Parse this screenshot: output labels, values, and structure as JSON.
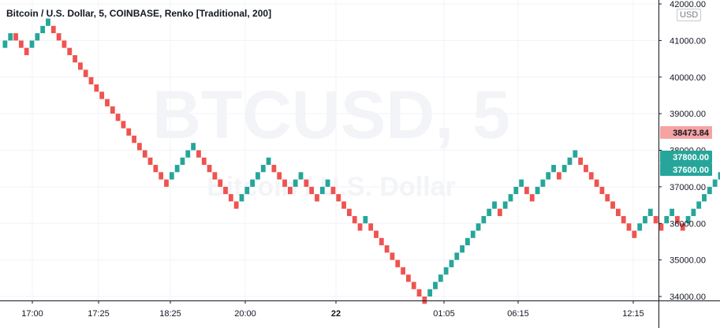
{
  "chart_data": {
    "type": "renko",
    "title": "Bitcoin / U.S. Dollar, 5, COINBASE, Renko [Traditional, 200]",
    "watermark_symbol": "BTCUSD, 5",
    "watermark_name": "Bitcoin / U.S. Dollar",
    "currency": "USD",
    "box_size": 200,
    "ylim": [
      33800,
      42200
    ],
    "y_ticks": [
      "34000.00",
      "35000.00",
      "36000.00",
      "37000.00",
      "38000.00",
      "39000.00",
      "40000.00",
      "41000.00",
      "42000.00"
    ],
    "x_ticks": [
      {
        "label": "17:00",
        "bold": false
      },
      {
        "label": "17:25",
        "bold": false
      },
      {
        "label": "18:25",
        "bold": false
      },
      {
        "label": "20:00",
        "bold": false
      },
      {
        "label": "22",
        "bold": true
      },
      {
        "label": "01:05",
        "bold": false
      },
      {
        "label": "06:15",
        "bold": false
      },
      {
        "label": "12:15",
        "bold": false
      }
    ],
    "price_labels": [
      {
        "value": "38473.84",
        "color": "#f5a3a3",
        "text_color": "#131722"
      },
      {
        "value": "37800.00",
        "color": "#26a69a",
        "text_color": "#ffffff"
      },
      {
        "value": "37600.00",
        "color": "#26a69a",
        "text_color": "#ffffff"
      }
    ],
    "colors": {
      "up": "#26a69a",
      "down": "#ef5350",
      "grid": "#f0f3fa",
      "axis_text": "#131722"
    },
    "bricks": [
      [
        40800,
        41000,
        "up"
      ],
      [
        41000,
        41200,
        "up"
      ],
      [
        41000,
        41200,
        "down"
      ],
      [
        40800,
        41000,
        "down"
      ],
      [
        40600,
        40800,
        "down"
      ],
      [
        40800,
        41000,
        "up"
      ],
      [
        41000,
        41200,
        "up"
      ],
      [
        41200,
        41400,
        "up"
      ],
      [
        41400,
        41600,
        "up"
      ],
      [
        41200,
        41400,
        "down"
      ],
      [
        41000,
        41200,
        "down"
      ],
      [
        40800,
        41000,
        "down"
      ],
      [
        40600,
        40800,
        "down"
      ],
      [
        40400,
        40600,
        "down"
      ],
      [
        40200,
        40400,
        "down"
      ],
      [
        40000,
        40200,
        "down"
      ],
      [
        39800,
        40000,
        "down"
      ],
      [
        39600,
        39800,
        "down"
      ],
      [
        39400,
        39600,
        "down"
      ],
      [
        39200,
        39400,
        "down"
      ],
      [
        39000,
        39200,
        "down"
      ],
      [
        38800,
        39000,
        "down"
      ],
      [
        38600,
        38800,
        "down"
      ],
      [
        38400,
        38600,
        "down"
      ],
      [
        38200,
        38400,
        "down"
      ],
      [
        38000,
        38200,
        "down"
      ],
      [
        37800,
        38000,
        "down"
      ],
      [
        37600,
        37800,
        "down"
      ],
      [
        37400,
        37600,
        "down"
      ],
      [
        37200,
        37400,
        "down"
      ],
      [
        37000,
        37200,
        "down"
      ],
      [
        37200,
        37400,
        "up"
      ],
      [
        37400,
        37600,
        "up"
      ],
      [
        37600,
        37800,
        "up"
      ],
      [
        37800,
        38000,
        "up"
      ],
      [
        38000,
        38200,
        "up"
      ],
      [
        37800,
        38000,
        "down"
      ],
      [
        37600,
        37800,
        "down"
      ],
      [
        37400,
        37600,
        "down"
      ],
      [
        37200,
        37400,
        "down"
      ],
      [
        37000,
        37200,
        "down"
      ],
      [
        36800,
        37000,
        "down"
      ],
      [
        36600,
        36800,
        "down"
      ],
      [
        36400,
        36600,
        "down"
      ],
      [
        36600,
        36800,
        "up"
      ],
      [
        36800,
        37000,
        "up"
      ],
      [
        37000,
        37200,
        "up"
      ],
      [
        37200,
        37400,
        "up"
      ],
      [
        37400,
        37600,
        "up"
      ],
      [
        37600,
        37800,
        "up"
      ],
      [
        37400,
        37600,
        "down"
      ],
      [
        37200,
        37400,
        "down"
      ],
      [
        37000,
        37200,
        "down"
      ],
      [
        36800,
        37000,
        "down"
      ],
      [
        37000,
        37200,
        "up"
      ],
      [
        37200,
        37400,
        "up"
      ],
      [
        37000,
        37200,
        "down"
      ],
      [
        36800,
        37000,
        "down"
      ],
      [
        36600,
        36800,
        "down"
      ],
      [
        36800,
        37000,
        "up"
      ],
      [
        37000,
        37200,
        "up"
      ],
      [
        36800,
        37000,
        "down"
      ],
      [
        36600,
        36800,
        "down"
      ],
      [
        36400,
        36600,
        "down"
      ],
      [
        36200,
        36400,
        "down"
      ],
      [
        36000,
        36200,
        "down"
      ],
      [
        35800,
        36000,
        "down"
      ],
      [
        36000,
        36200,
        "up"
      ],
      [
        35800,
        36000,
        "down"
      ],
      [
        35600,
        35800,
        "down"
      ],
      [
        35400,
        35600,
        "down"
      ],
      [
        35200,
        35400,
        "down"
      ],
      [
        35000,
        35200,
        "down"
      ],
      [
        34800,
        35000,
        "down"
      ],
      [
        34600,
        34800,
        "down"
      ],
      [
        34400,
        34600,
        "down"
      ],
      [
        34200,
        34400,
        "down"
      ],
      [
        34000,
        34200,
        "down"
      ],
      [
        33800,
        34000,
        "down"
      ],
      [
        34000,
        34200,
        "up"
      ],
      [
        34200,
        34400,
        "up"
      ],
      [
        34400,
        34600,
        "up"
      ],
      [
        34600,
        34800,
        "up"
      ],
      [
        34800,
        35000,
        "up"
      ],
      [
        35000,
        35200,
        "up"
      ],
      [
        35200,
        35400,
        "up"
      ],
      [
        35400,
        35600,
        "up"
      ],
      [
        35600,
        35800,
        "up"
      ],
      [
        35800,
        36000,
        "up"
      ],
      [
        36000,
        36200,
        "up"
      ],
      [
        36200,
        36400,
        "up"
      ],
      [
        36400,
        36600,
        "up"
      ],
      [
        36200,
        36400,
        "down"
      ],
      [
        36400,
        36600,
        "up"
      ],
      [
        36600,
        36800,
        "up"
      ],
      [
        36800,
        37000,
        "up"
      ],
      [
        37000,
        37200,
        "up"
      ],
      [
        36800,
        37000,
        "down"
      ],
      [
        36600,
        36800,
        "down"
      ],
      [
        36800,
        37000,
        "up"
      ],
      [
        37000,
        37200,
        "up"
      ],
      [
        37200,
        37400,
        "up"
      ],
      [
        37400,
        37600,
        "up"
      ],
      [
        37200,
        37400,
        "down"
      ],
      [
        37400,
        37600,
        "up"
      ],
      [
        37600,
        37800,
        "up"
      ],
      [
        37800,
        38000,
        "up"
      ],
      [
        37600,
        37800,
        "down"
      ],
      [
        37400,
        37600,
        "down"
      ],
      [
        37200,
        37400,
        "down"
      ],
      [
        37000,
        37200,
        "down"
      ],
      [
        36800,
        37000,
        "down"
      ],
      [
        36600,
        36800,
        "down"
      ],
      [
        36400,
        36600,
        "down"
      ],
      [
        36200,
        36400,
        "down"
      ],
      [
        36000,
        36200,
        "down"
      ],
      [
        35800,
        36000,
        "down"
      ],
      [
        35600,
        35800,
        "down"
      ],
      [
        35800,
        36000,
        "up"
      ],
      [
        36000,
        36200,
        "up"
      ],
      [
        36200,
        36400,
        "up"
      ],
      [
        36000,
        36200,
        "down"
      ],
      [
        35800,
        36000,
        "down"
      ],
      [
        36000,
        36200,
        "up"
      ],
      [
        36200,
        36400,
        "up"
      ],
      [
        36000,
        36200,
        "down"
      ],
      [
        35800,
        36000,
        "down"
      ],
      [
        36000,
        36200,
        "up"
      ],
      [
        36200,
        36400,
        "up"
      ],
      [
        36400,
        36600,
        "up"
      ],
      [
        36600,
        36800,
        "up"
      ],
      [
        36800,
        37000,
        "up"
      ],
      [
        37000,
        37200,
        "up"
      ],
      [
        37200,
        37400,
        "up"
      ],
      [
        37000,
        37200,
        "down"
      ],
      [
        37200,
        37400,
        "up"
      ],
      [
        37400,
        37600,
        "up"
      ],
      [
        37600,
        37800,
        "up"
      ]
    ]
  }
}
